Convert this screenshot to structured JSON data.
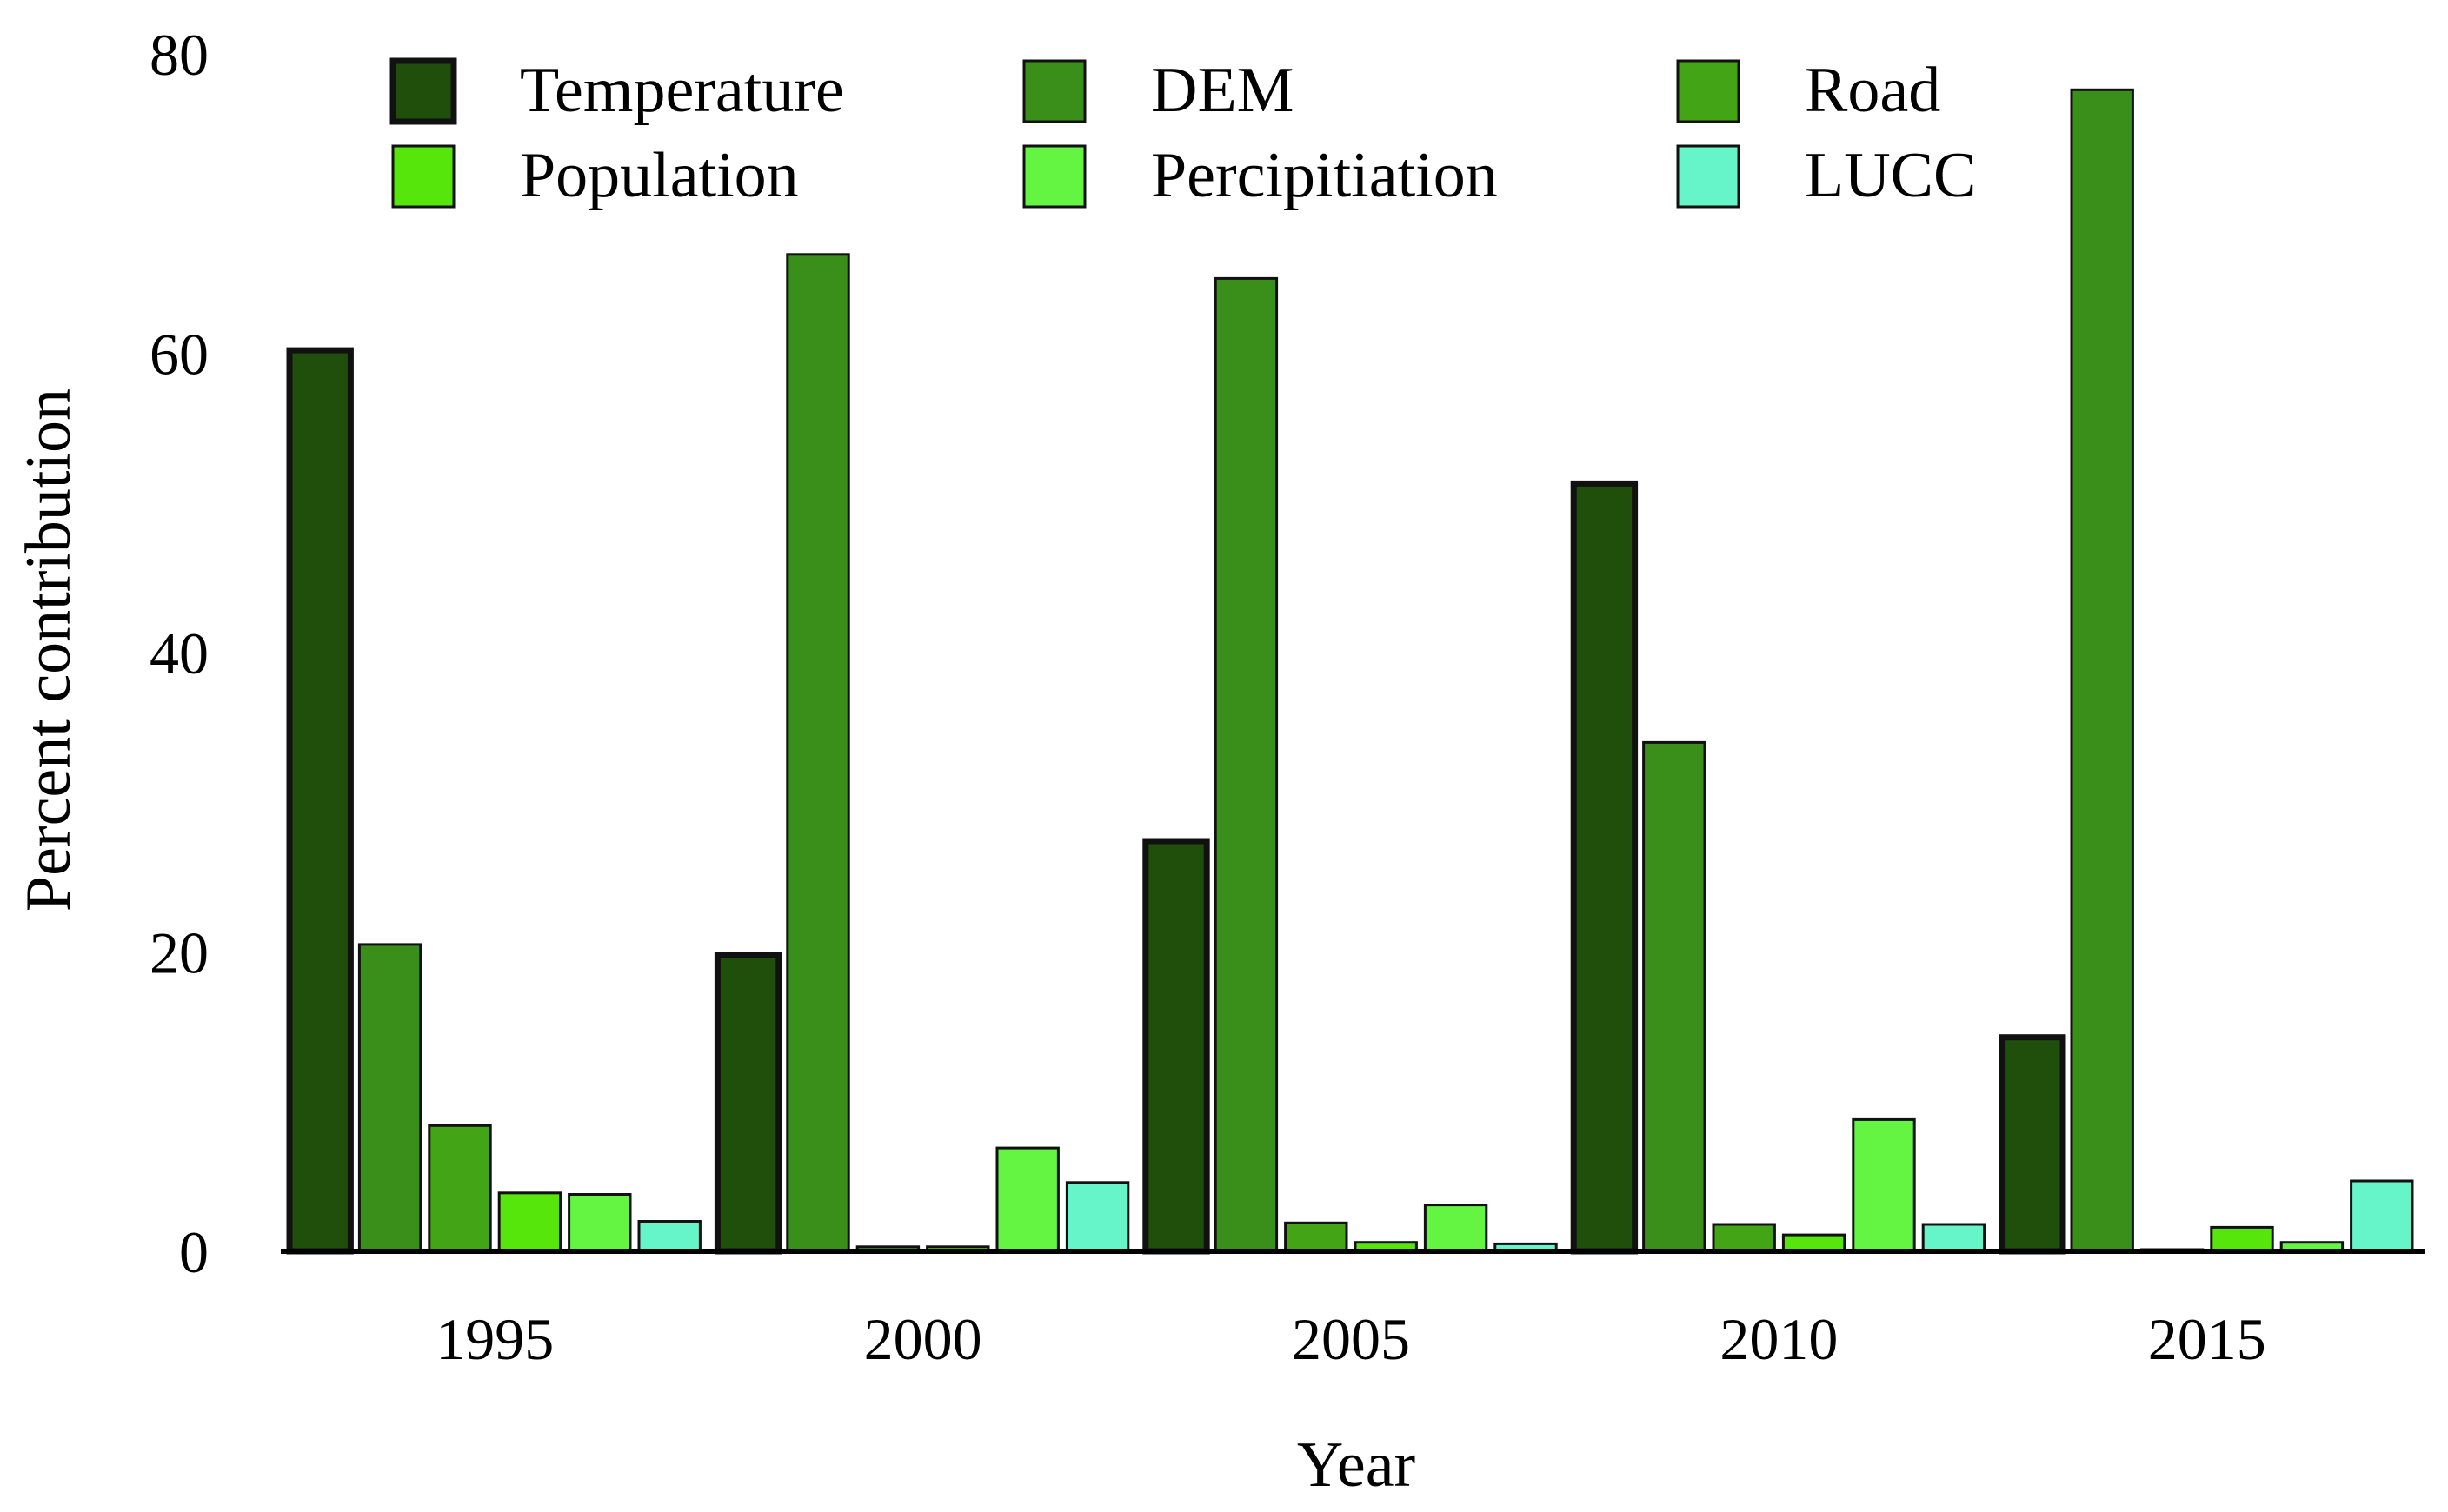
{
  "chart_data": {
    "type": "bar",
    "title": "",
    "xlabel": "Year",
    "ylabel": "Percent contribution",
    "ylim": [
      0,
      80
    ],
    "yticks": [
      0,
      20,
      40,
      60,
      80
    ],
    "categories": [
      "1995",
      "2000",
      "2005",
      "2010",
      "2015"
    ],
    "legend_position": "top",
    "series": [
      {
        "name": "Temperature",
        "color": "#1f4f0a",
        "values": [
          60.2,
          19.8,
          27.4,
          51.3,
          14.3
        ]
      },
      {
        "name": "DEM",
        "color": "#3a8f1a",
        "values": [
          20.5,
          66.6,
          65.0,
          34.0,
          77.6
        ]
      },
      {
        "name": "Road",
        "color": "#43a515",
        "values": [
          8.4,
          0.3,
          1.9,
          1.8,
          0.0
        ]
      },
      {
        "name": "Population",
        "color": "#56e60c",
        "values": [
          3.9,
          0.3,
          0.6,
          1.1,
          1.6
        ]
      },
      {
        "name": "Percipitiation",
        "color": "#63f542",
        "values": [
          3.8,
          6.9,
          3.1,
          8.8,
          0.6
        ]
      },
      {
        "name": "LUCC",
        "color": "#66f5c8",
        "values": [
          2.0,
          4.6,
          0.5,
          1.8,
          4.7
        ]
      }
    ]
  }
}
